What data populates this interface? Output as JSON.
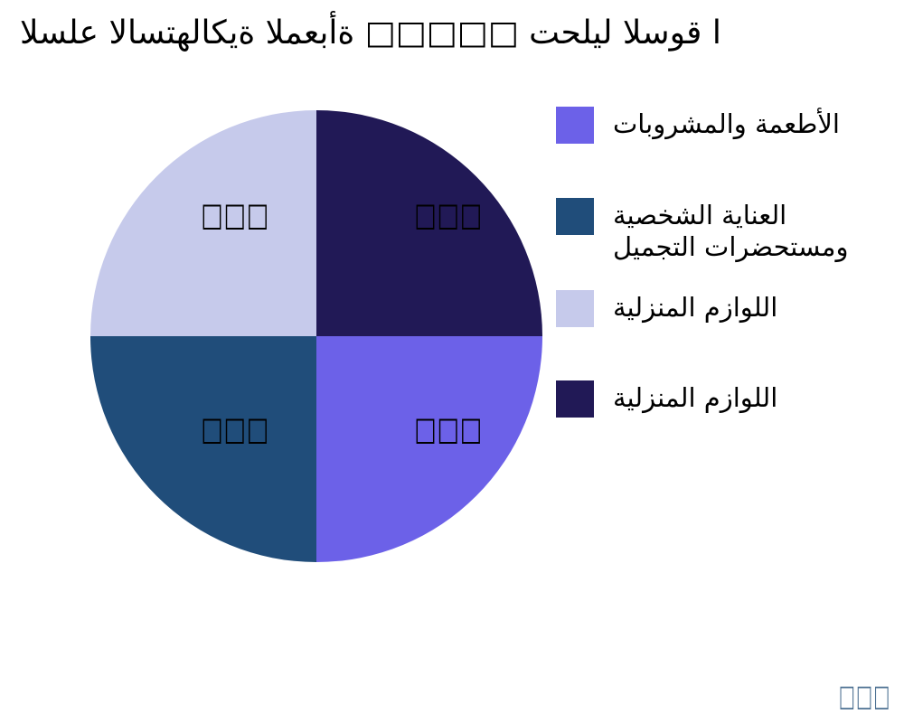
{
  "title": {
    "text": "السلع الاستهلاكية المعبأة □□□□□ تحليل السوق ا"
  },
  "legend": {
    "position": "right",
    "items": [
      {
        "label": "الأطعمة والمشروبات",
        "display_lines": [
          "الأطعمة والمشروبات"
        ],
        "color": "#6C61E8"
      },
      {
        "label": "العناية الشخصية ومستحضرات التجميل",
        "display_lines": [
          "العناية الشخصية",
          "ومستحضرات التجميل"
        ],
        "color": "#204D7A"
      },
      {
        "label": "اللوازم المنزلية",
        "display_lines": [
          "اللوازم المنزلية"
        ],
        "color": "#C6CAEB"
      },
      {
        "label": "اللوازم المنزلية",
        "display_lines": [
          "اللوازم المنزلية"
        ],
        "color": "#211956"
      }
    ]
  },
  "caption": {
    "text": "□□□",
    "color": "#4C7092"
  },
  "chart_data": {
    "type": "pie",
    "title": "السلع الاستهلاكية المعبأة □□□□□ تحليل السوق ا",
    "labels": [
      "الأطعمة والمشروبات",
      "العناية الشخصية ومستحضرات التجميل",
      "اللوازم المنزلية",
      "اللوازم المنزلية"
    ],
    "values": [
      25,
      25,
      25,
      25
    ],
    "colors": [
      "#6C61E8",
      "#204D7A",
      "#C6CAEB",
      "#211956"
    ],
    "slice_positions": [
      "bottom-right",
      "bottom-left",
      "top-left",
      "top-right"
    ],
    "slice_value_labels": [
      "□□□",
      "□□□",
      "□□□",
      "□□□"
    ],
    "value_label_color": "#000000",
    "legend_position": "right",
    "background": "#FFFFFF"
  }
}
